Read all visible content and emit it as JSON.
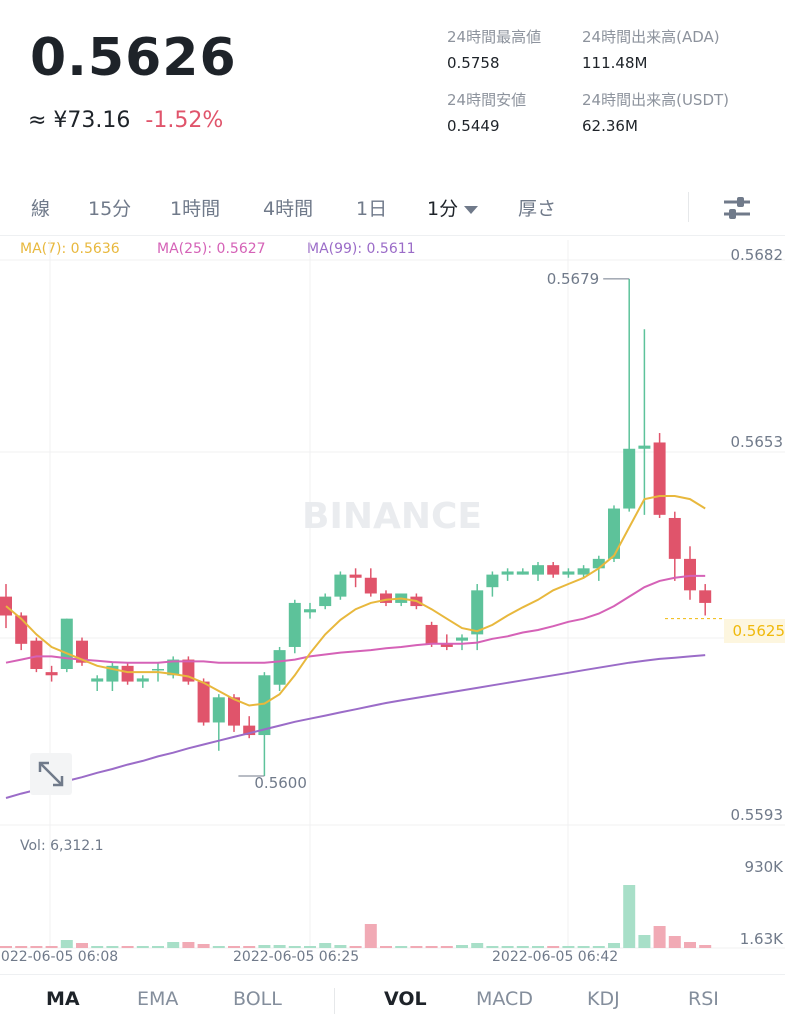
{
  "ticker": {
    "price": "0.5626",
    "approx_jpy": "≈ ¥73.16",
    "change_pct": "-1.52%"
  },
  "stats": {
    "high_label": "24時間最高値",
    "high_value": "0.5758",
    "volume_ada_label": "24時間出来高(ADA)",
    "volume_ada_value": "111.48M",
    "low_label": "24時間安値",
    "low_value": "0.5449",
    "volume_usdt_label": "24時間出来高(USDT)",
    "volume_usdt_value": "62.36M"
  },
  "timeframes": [
    {
      "label": "線"
    },
    {
      "label": "15分"
    },
    {
      "label": "1時間"
    },
    {
      "label": "4時間"
    },
    {
      "label": "1日"
    },
    {
      "label": "1分",
      "active": true
    },
    {
      "label": "厚さ"
    }
  ],
  "settings_icon": "sliders-icon",
  "ma_legend": {
    "ma7": "MA(7): 0.5636",
    "ma25": "MA(25): 0.5627",
    "ma99": "MA(99): 0.5611"
  },
  "colors": {
    "up": "#5dc29a",
    "down": "#e0546b",
    "ma7": "#f0b90b",
    "ma25": "#d562b7",
    "ma99": "#9b6cc8",
    "accent_yellow": "#f0b90b"
  },
  "watermark": "BINANCE",
  "y_axis_labels": [
    "0.5682",
    "0.5653",
    "0.5625",
    "0.5593"
  ],
  "current_price_label": "0.5625",
  "annotations": {
    "high_marker": "0.5679",
    "low_marker": "0.5600"
  },
  "volume": {
    "label": "Vol: 6,312.1",
    "axis_labels": [
      "930K",
      "1.63K"
    ]
  },
  "x_axis_labels": [
    "2022-06-05 06:08",
    "2022-06-05 06:25",
    "2022-06-05 06:42"
  ],
  "indicator_tabs": {
    "main": [
      {
        "label": "MA",
        "active": true
      },
      {
        "label": "EMA"
      },
      {
        "label": "BOLL"
      }
    ],
    "sub": [
      {
        "label": "VOL",
        "active": true
      },
      {
        "label": "MACD"
      },
      {
        "label": "KDJ"
      },
      {
        "label": "RSI"
      }
    ]
  },
  "expand_icon": "expand-arrows-icon",
  "chart_data": {
    "type": "candlestick",
    "interval": "1分",
    "ylim": [
      0.5593,
      0.5682
    ],
    "candles": [
      {
        "o": 0.56285,
        "h": 0.56305,
        "l": 0.56235,
        "c": 0.56255
      },
      {
        "o": 0.56255,
        "h": 0.5626,
        "l": 0.562,
        "c": 0.5621
      },
      {
        "o": 0.56215,
        "h": 0.5622,
        "l": 0.56165,
        "c": 0.5617
      },
      {
        "o": 0.56165,
        "h": 0.56175,
        "l": 0.5615,
        "c": 0.5616
      },
      {
        "o": 0.5617,
        "h": 0.5625,
        "l": 0.56165,
        "c": 0.5625
      },
      {
        "o": 0.56215,
        "h": 0.5622,
        "l": 0.56175,
        "c": 0.5618
      },
      {
        "o": 0.5615,
        "h": 0.5616,
        "l": 0.56135,
        "c": 0.56155
      },
      {
        "o": 0.5615,
        "h": 0.5618,
        "l": 0.56135,
        "c": 0.56175
      },
      {
        "o": 0.56175,
        "h": 0.5618,
        "l": 0.56145,
        "c": 0.5615
      },
      {
        "o": 0.5615,
        "h": 0.5616,
        "l": 0.5614,
        "c": 0.56155
      },
      {
        "o": 0.5617,
        "h": 0.5618,
        "l": 0.5615,
        "c": 0.5617
      },
      {
        "o": 0.5616,
        "h": 0.5619,
        "l": 0.56155,
        "c": 0.56185
      },
      {
        "o": 0.56185,
        "h": 0.5619,
        "l": 0.56145,
        "c": 0.5615
      },
      {
        "o": 0.5615,
        "h": 0.56155,
        "l": 0.5608,
        "c": 0.56085
      },
      {
        "o": 0.56085,
        "h": 0.5613,
        "l": 0.5604,
        "c": 0.56125
      },
      {
        "o": 0.56125,
        "h": 0.5613,
        "l": 0.5607,
        "c": 0.5608
      },
      {
        "o": 0.5608,
        "h": 0.56095,
        "l": 0.5606,
        "c": 0.56065
      },
      {
        "o": 0.56065,
        "h": 0.56165,
        "l": 0.56,
        "c": 0.5616
      },
      {
        "o": 0.56145,
        "h": 0.56205,
        "l": 0.56135,
        "c": 0.562
      },
      {
        "o": 0.56205,
        "h": 0.5628,
        "l": 0.56195,
        "c": 0.56275
      },
      {
        "o": 0.5626,
        "h": 0.56275,
        "l": 0.5625,
        "c": 0.56265
      },
      {
        "o": 0.5627,
        "h": 0.5629,
        "l": 0.56265,
        "c": 0.56285
      },
      {
        "o": 0.56285,
        "h": 0.56325,
        "l": 0.5628,
        "c": 0.5632
      },
      {
        "o": 0.5632,
        "h": 0.5633,
        "l": 0.563,
        "c": 0.56315
      },
      {
        "o": 0.56315,
        "h": 0.5633,
        "l": 0.56285,
        "c": 0.5629
      },
      {
        "o": 0.5629,
        "h": 0.56295,
        "l": 0.5627,
        "c": 0.56275
      },
      {
        "o": 0.56275,
        "h": 0.5629,
        "l": 0.5627,
        "c": 0.5629
      },
      {
        "o": 0.56285,
        "h": 0.5629,
        "l": 0.56265,
        "c": 0.5627
      },
      {
        "o": 0.5624,
        "h": 0.56245,
        "l": 0.56205,
        "c": 0.5621
      },
      {
        "o": 0.5621,
        "h": 0.56225,
        "l": 0.562,
        "c": 0.56205
      },
      {
        "o": 0.56215,
        "h": 0.56225,
        "l": 0.562,
        "c": 0.5622
      },
      {
        "o": 0.56225,
        "h": 0.56305,
        "l": 0.562,
        "c": 0.56295
      },
      {
        "o": 0.563,
        "h": 0.56325,
        "l": 0.56285,
        "c": 0.5632
      },
      {
        "o": 0.5632,
        "h": 0.5633,
        "l": 0.5631,
        "c": 0.56325
      },
      {
        "o": 0.5632,
        "h": 0.5633,
        "l": 0.5632,
        "c": 0.56325
      },
      {
        "o": 0.5632,
        "h": 0.5634,
        "l": 0.5631,
        "c": 0.56335
      },
      {
        "o": 0.56335,
        "h": 0.5634,
        "l": 0.56315,
        "c": 0.5632
      },
      {
        "o": 0.5632,
        "h": 0.5633,
        "l": 0.56315,
        "c": 0.56325
      },
      {
        "o": 0.5632,
        "h": 0.56335,
        "l": 0.56315,
        "c": 0.5633
      },
      {
        "o": 0.5633,
        "h": 0.5635,
        "l": 0.5631,
        "c": 0.56345
      },
      {
        "o": 0.56345,
        "h": 0.5643,
        "l": 0.5634,
        "c": 0.56425
      },
      {
        "o": 0.56425,
        "h": 0.5679,
        "l": 0.5642,
        "c": 0.5652
      },
      {
        "o": 0.5652,
        "h": 0.5671,
        "l": 0.56415,
        "c": 0.56525
      },
      {
        "o": 0.5653,
        "h": 0.56545,
        "l": 0.5641,
        "c": 0.56415
      },
      {
        "o": 0.5641,
        "h": 0.5642,
        "l": 0.5631,
        "c": 0.56345
      },
      {
        "o": 0.56345,
        "h": 0.56365,
        "l": 0.5628,
        "c": 0.56295
      },
      {
        "o": 0.56295,
        "h": 0.56305,
        "l": 0.56255,
        "c": 0.56275
      }
    ],
    "ma7": [
      0.5627,
      0.5625,
      0.56225,
      0.56205,
      0.56195,
      0.56185,
      0.56175,
      0.5617,
      0.56165,
      0.56165,
      0.56165,
      0.56162,
      0.56158,
      0.56148,
      0.56135,
      0.56122,
      0.56112,
      0.56115,
      0.5613,
      0.5616,
      0.56195,
      0.56225,
      0.56248,
      0.56265,
      0.56275,
      0.5628,
      0.56282,
      0.56278,
      0.56265,
      0.5625,
      0.56235,
      0.5623,
      0.5624,
      0.56255,
      0.56268,
      0.5628,
      0.56295,
      0.56305,
      0.56315,
      0.5633,
      0.5635,
      0.56395,
      0.5644,
      0.56445,
      0.56445,
      0.5644,
      0.56425
    ],
    "ma25": [
      0.5618,
      0.56185,
      0.5619,
      0.5619,
      0.56187,
      0.56185,
      0.56183,
      0.56181,
      0.5618,
      0.5618,
      0.5618,
      0.56182,
      0.56182,
      0.56182,
      0.5618,
      0.5618,
      0.5618,
      0.5618,
      0.56182,
      0.56185,
      0.5619,
      0.56193,
      0.56196,
      0.56198,
      0.562,
      0.56203,
      0.56205,
      0.56208,
      0.5621,
      0.5621,
      0.5621,
      0.56212,
      0.56218,
      0.56222,
      0.56228,
      0.56232,
      0.56238,
      0.56245,
      0.5625,
      0.56258,
      0.5627,
      0.56285,
      0.563,
      0.5631,
      0.56315,
      0.56318,
      0.56318
    ],
    "ma99": [
      0.55965,
      0.55972,
      0.55978,
      0.55985,
      0.55992,
      0.55998,
      0.56005,
      0.56011,
      0.56018,
      0.56024,
      0.56031,
      0.56037,
      0.56044,
      0.5605,
      0.56056,
      0.56062,
      0.56068,
      0.56074,
      0.5608,
      0.56086,
      0.56091,
      0.56096,
      0.56101,
      0.56106,
      0.56111,
      0.56116,
      0.5612,
      0.56124,
      0.56128,
      0.56132,
      0.56136,
      0.5614,
      0.56144,
      0.56148,
      0.56152,
      0.56156,
      0.5616,
      0.56164,
      0.56168,
      0.56172,
      0.56176,
      0.5618,
      0.56183,
      0.56186,
      0.56188,
      0.5619,
      0.56192
    ],
    "volume_heights": [
      0.02,
      0.02,
      0.02,
      0.02,
      0.08,
      0.05,
      0.02,
      0.02,
      0.01,
      0.01,
      0.01,
      0.06,
      0.06,
      0.04,
      0.02,
      0.01,
      0.01,
      0.03,
      0.03,
      0.02,
      0.01,
      0.05,
      0.03,
      0.02,
      0.24,
      0.01,
      0.01,
      0.02,
      0.02,
      0.02,
      0.03,
      0.05,
      0.01,
      0.01,
      0.01,
      0.01,
      0.01,
      0.01,
      0.01,
      0.01,
      0.05,
      0.63,
      0.13,
      0.22,
      0.12,
      0.06,
      0.03
    ]
  }
}
